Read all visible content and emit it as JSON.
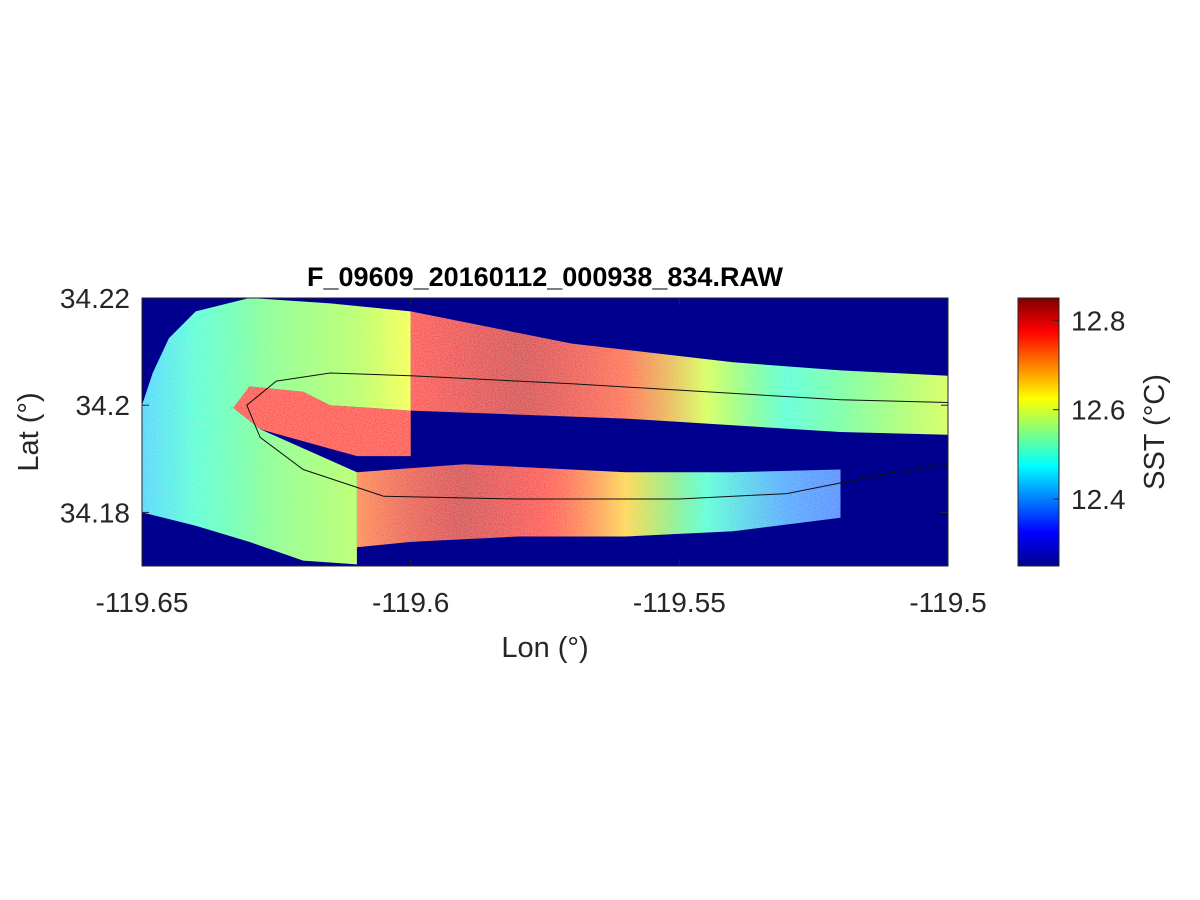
{
  "chart_data": {
    "type": "heatmap",
    "title": "F_09609_20160112_000938_834.RAW",
    "xlabel": "Lon (°)",
    "ylabel": "Lat (°)",
    "xlim": [
      -119.65,
      -119.5
    ],
    "ylim": [
      34.17,
      34.22
    ],
    "xticks": [
      {
        "value": -119.65,
        "label": "-119.65"
      },
      {
        "value": -119.6,
        "label": "-119.6"
      },
      {
        "value": -119.55,
        "label": "-119.55"
      },
      {
        "value": -119.5,
        "label": "-119.5"
      }
    ],
    "yticks": [
      {
        "value": 34.22,
        "label": "34.22"
      },
      {
        "value": 34.2,
        "label": "34.2"
      },
      {
        "value": 34.18,
        "label": "34.18"
      }
    ],
    "background_color": "#00008f",
    "colorbar": {
      "label": "SST (°C)",
      "colormap": "jet",
      "range": [
        12.25,
        12.85
      ],
      "ticks": [
        {
          "value": 12.4,
          "label": "12.4"
        },
        {
          "value": 12.6,
          "label": "12.6"
        },
        {
          "value": 12.8,
          "label": "12.8"
        }
      ]
    },
    "swaths": [
      {
        "name": "north-swath",
        "outline": [
          [
            -119.6,
            34.2175
          ],
          [
            -119.57,
            34.2115
          ],
          [
            -119.54,
            34.208
          ],
          [
            -119.52,
            34.2065
          ],
          [
            -119.5,
            34.2055
          ],
          [
            -119.5,
            34.1945
          ],
          [
            -119.52,
            34.195
          ],
          [
            -119.56,
            34.1975
          ],
          [
            -119.6,
            34.199
          ],
          [
            -119.615,
            34.2
          ],
          [
            -119.62,
            34.2025
          ],
          [
            -119.63,
            34.2035
          ],
          [
            -119.633,
            34.1995
          ],
          [
            -119.628,
            34.1955
          ],
          [
            -119.61,
            34.1905
          ],
          [
            -119.6,
            34.1905
          ],
          [
            -119.6,
            34.2175
          ]
        ],
        "temps": [
          [
            -119.6,
            12.75
          ],
          [
            -119.58,
            12.8
          ],
          [
            -119.56,
            12.72
          ],
          [
            -119.545,
            12.6
          ],
          [
            -119.53,
            12.5
          ],
          [
            -119.515,
            12.55
          ],
          [
            -119.5,
            12.6
          ]
        ]
      },
      {
        "name": "south-swath",
        "outline": [
          [
            -119.59,
            34.189
          ],
          [
            -119.56,
            34.1875
          ],
          [
            -119.54,
            34.1875
          ],
          [
            -119.52,
            34.188
          ],
          [
            -119.52,
            34.179
          ],
          [
            -119.54,
            34.1765
          ],
          [
            -119.56,
            34.1755
          ],
          [
            -119.58,
            34.1755
          ],
          [
            -119.6,
            34.1745
          ],
          [
            -119.61,
            34.1735
          ],
          [
            -119.61,
            34.1875
          ],
          [
            -119.59,
            34.189
          ]
        ],
        "temps": [
          [
            -119.61,
            12.7
          ],
          [
            -119.59,
            12.8
          ],
          [
            -119.575,
            12.75
          ],
          [
            -119.56,
            12.65
          ],
          [
            -119.545,
            12.5
          ],
          [
            -119.53,
            12.42
          ],
          [
            -119.52,
            12.4
          ]
        ]
      },
      {
        "name": "west-turn-swath",
        "outline": [
          [
            -119.6,
            34.2175
          ],
          [
            -119.615,
            34.219
          ],
          [
            -119.63,
            34.22
          ],
          [
            -119.64,
            34.2175
          ],
          [
            -119.645,
            34.2125
          ],
          [
            -119.648,
            34.206
          ],
          [
            -119.65,
            34.2
          ],
          [
            -119.65,
            34.18
          ],
          [
            -119.64,
            34.1775
          ],
          [
            -119.63,
            34.1745
          ],
          [
            -119.62,
            34.171
          ],
          [
            -119.61,
            34.1703
          ],
          [
            -119.61,
            34.1875
          ],
          [
            -119.628,
            34.1955
          ],
          [
            -119.633,
            34.1995
          ],
          [
            -119.63,
            34.2035
          ],
          [
            -119.62,
            34.2025
          ],
          [
            -119.615,
            34.2
          ],
          [
            -119.6,
            34.199
          ],
          [
            -119.6,
            34.2175
          ]
        ],
        "temps": [
          [
            -119.65,
            12.45
          ],
          [
            -119.64,
            12.5
          ],
          [
            -119.625,
            12.55
          ],
          [
            -119.61,
            12.58
          ],
          [
            -119.6,
            12.62
          ]
        ]
      }
    ],
    "track": [
      [
        -119.5,
        34.2005
      ],
      [
        -119.52,
        34.201
      ],
      [
        -119.545,
        34.2025
      ],
      [
        -119.57,
        34.204
      ],
      [
        -119.6,
        34.2055
      ],
      [
        -119.615,
        34.206
      ],
      [
        -119.625,
        34.2045
      ],
      [
        -119.6305,
        34.2
      ],
      [
        -119.628,
        34.194
      ],
      [
        -119.62,
        34.188
      ],
      [
        -119.605,
        34.183
      ],
      [
        -119.58,
        34.1825
      ],
      [
        -119.55,
        34.1825
      ],
      [
        -119.53,
        34.1835
      ],
      [
        -119.51,
        34.1875
      ],
      [
        -119.5,
        34.189
      ]
    ]
  }
}
